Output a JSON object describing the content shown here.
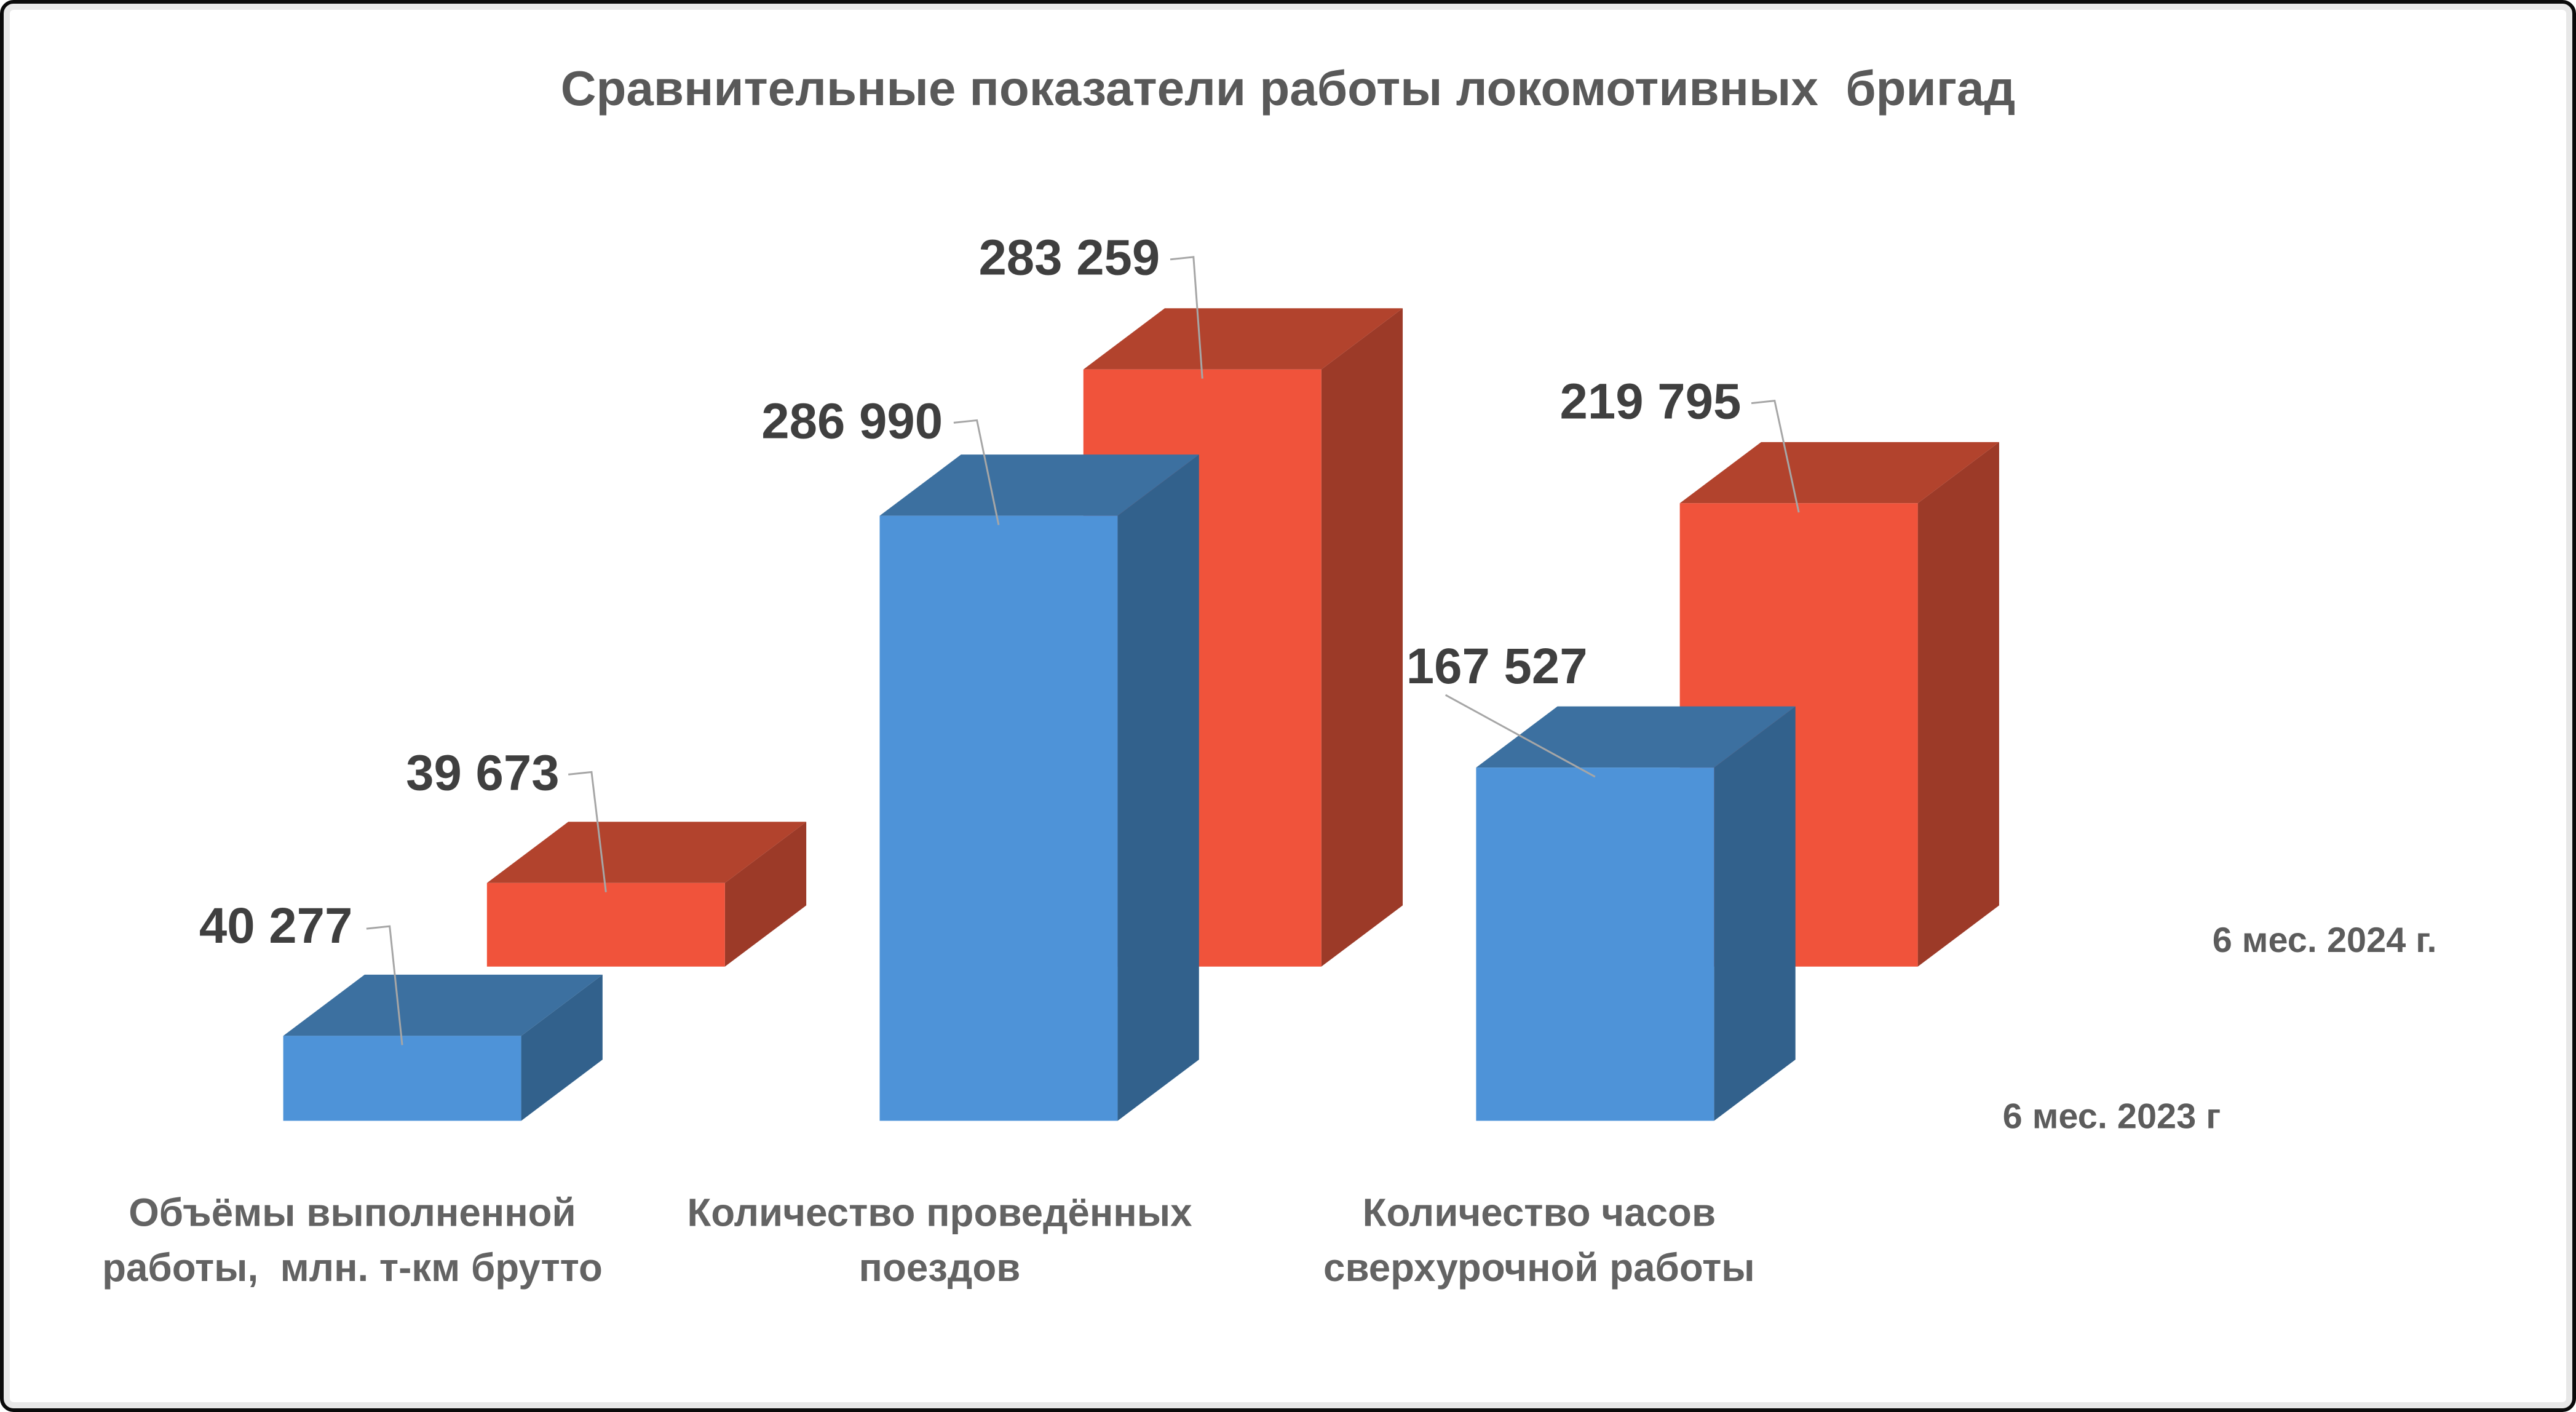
{
  "title": {
    "text": "Сравнительные показатели работы локомотивных  бригад"
  },
  "legend": {
    "labels": [
      "6 мес. 2024 г.",
      "6 мес. 2023 г"
    ]
  },
  "chart_data": {
    "type": "bar",
    "style": "3d-clustered-column",
    "title": "Сравнительные показатели работы локомотивных  бригад",
    "categories": [
      "Объёмы выполненной работы,  млн. т-км брутто",
      "Количество проведённых поездов",
      "Количество часов сверхурочной работы"
    ],
    "category_lines": [
      [
        "Объёмы выполненной",
        "работы,  млн. т-км брутто"
      ],
      [
        "Количество проведённых",
        "поездов"
      ],
      [
        "Количество часов",
        "сверхурочной работы"
      ]
    ],
    "series": [
      {
        "name": "6 мес. 2023 г",
        "row": "front",
        "values": [
          40277,
          286990,
          167527
        ],
        "labels": [
          "40 277",
          "286 990",
          "167 527"
        ]
      },
      {
        "name": "6 мес. 2024 г.",
        "row": "back",
        "values": [
          39673,
          283259,
          219795
        ],
        "labels": [
          "39 673",
          "283 259",
          "219 795"
        ]
      }
    ],
    "value_axis": {
      "visible": false,
      "min": 0
    },
    "gridlines": false,
    "legend_position": "right",
    "data_labels": true
  },
  "colors": {
    "series_2023": {
      "front": "#4E93D8",
      "top": "#3C70A0",
      "side": "#32618C"
    },
    "series_2024": {
      "front": "#F0533B",
      "top": "#B2432D",
      "side": "#9C3A28"
    },
    "leader_line": "#A6A6A6",
    "title_text": "#595959",
    "data_label_text": "#3F3F3F",
    "category_text": "#636363",
    "legend_text": "#5C5C5C",
    "background": "#FFFFFF",
    "frame_border": "#000000",
    "frame_inner": "#E8E8E8"
  }
}
